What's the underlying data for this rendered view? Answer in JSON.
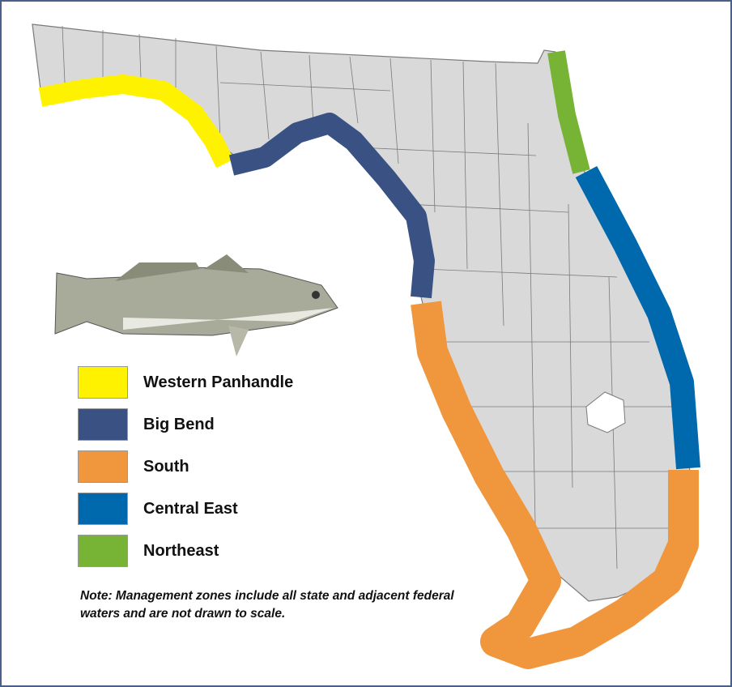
{
  "legend": [
    {
      "label": "Western Panhandle",
      "color": "#fff200"
    },
    {
      "label": "Big Bend",
      "color": "#3a5283"
    },
    {
      "label": "South",
      "color": "#f0963c"
    },
    {
      "label": "Central East",
      "color": "#0068ad"
    },
    {
      "label": "Northeast",
      "color": "#77b334"
    }
  ],
  "note": "Note: Management zones include all state and adjacent federal waters and are not drawn to scale.",
  "land_color": "#d9d9da",
  "county_line_color": "#7a7a7a",
  "illustration": "spotted-seatrout"
}
